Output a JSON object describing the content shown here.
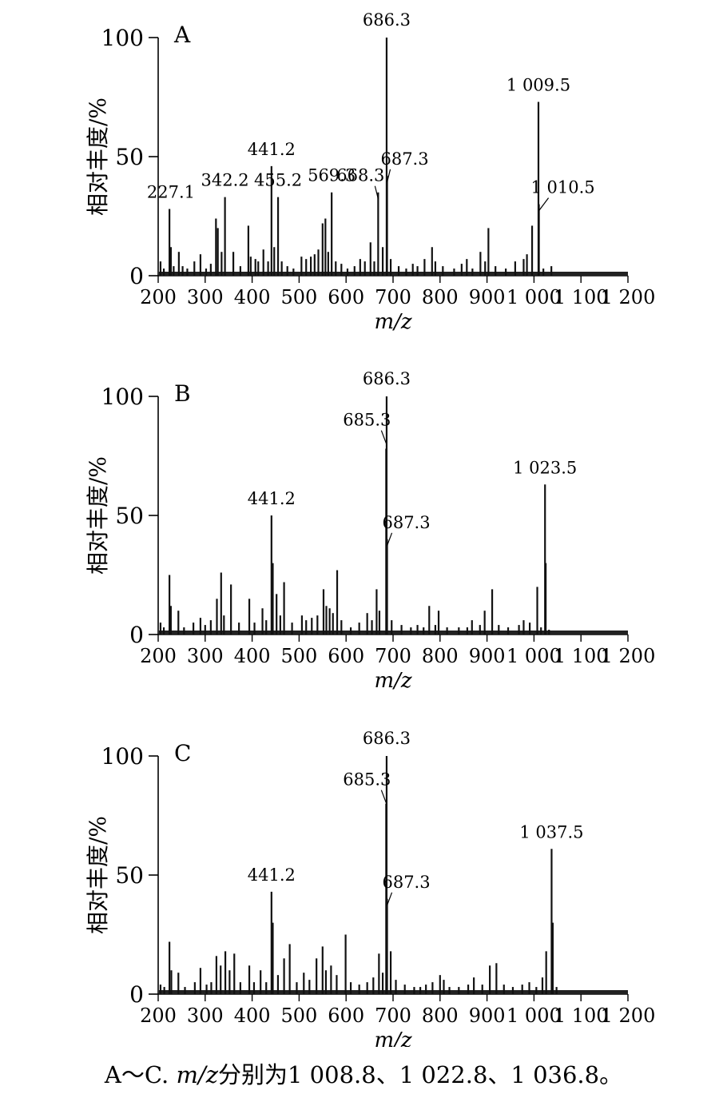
{
  "caption": {
    "prefix": "A～C. ",
    "mz": "m/z",
    "rest": "分别为1 008.8、1 022.8、1 036.8。"
  },
  "chart_data": [
    {
      "type": "bar",
      "panel": "A",
      "xlabel": "m/z",
      "ylabel": "相对丰度/%",
      "xlim": [
        200,
        1200
      ],
      "ylim": [
        0,
        100
      ],
      "xticks": [
        200,
        300,
        400,
        500,
        600,
        700,
        800,
        900,
        1000,
        1100,
        1200
      ],
      "xtick_labels": [
        "200",
        "300",
        "400",
        "500",
        "600",
        "700",
        "800",
        "900",
        "1 000",
        "1 100",
        "1 200"
      ],
      "yticks": [
        0,
        50,
        100
      ],
      "ytick_labels": [
        "0",
        "50",
        "100"
      ],
      "peaks": [
        {
          "x": 205,
          "y": 6
        },
        {
          "x": 212,
          "y": 3
        },
        {
          "x": 224,
          "y": 28
        },
        {
          "x": 227.1,
          "y": 12
        },
        {
          "x": 233,
          "y": 4
        },
        {
          "x": 244,
          "y": 10
        },
        {
          "x": 252,
          "y": 4
        },
        {
          "x": 262,
          "y": 3
        },
        {
          "x": 277,
          "y": 6
        },
        {
          "x": 290,
          "y": 9
        },
        {
          "x": 302,
          "y": 3
        },
        {
          "x": 312,
          "y": 5
        },
        {
          "x": 323,
          "y": 24
        },
        {
          "x": 327,
          "y": 20
        },
        {
          "x": 335,
          "y": 10
        },
        {
          "x": 342.2,
          "y": 33
        },
        {
          "x": 360,
          "y": 10
        },
        {
          "x": 375,
          "y": 4
        },
        {
          "x": 392,
          "y": 21
        },
        {
          "x": 397,
          "y": 8
        },
        {
          "x": 407,
          "y": 7
        },
        {
          "x": 413,
          "y": 6
        },
        {
          "x": 424,
          "y": 11
        },
        {
          "x": 434,
          "y": 6
        },
        {
          "x": 441.2,
          "y": 46
        },
        {
          "x": 447,
          "y": 12
        },
        {
          "x": 455.2,
          "y": 33
        },
        {
          "x": 463,
          "y": 6
        },
        {
          "x": 475,
          "y": 4
        },
        {
          "x": 488,
          "y": 3
        },
        {
          "x": 505,
          "y": 8
        },
        {
          "x": 515,
          "y": 7
        },
        {
          "x": 525,
          "y": 8
        },
        {
          "x": 533,
          "y": 9
        },
        {
          "x": 541,
          "y": 11
        },
        {
          "x": 550,
          "y": 22
        },
        {
          "x": 556,
          "y": 24
        },
        {
          "x": 562,
          "y": 10
        },
        {
          "x": 569.3,
          "y": 35
        },
        {
          "x": 578,
          "y": 6
        },
        {
          "x": 590,
          "y": 5
        },
        {
          "x": 603,
          "y": 3
        },
        {
          "x": 618,
          "y": 4
        },
        {
          "x": 630,
          "y": 7
        },
        {
          "x": 640,
          "y": 6
        },
        {
          "x": 652,
          "y": 14
        },
        {
          "x": 660,
          "y": 6
        },
        {
          "x": 668.3,
          "y": 35
        },
        {
          "x": 678,
          "y": 12
        },
        {
          "x": 686.3,
          "y": 100
        },
        {
          "x": 687.3,
          "y": 42
        },
        {
          "x": 695,
          "y": 7
        },
        {
          "x": 712,
          "y": 4
        },
        {
          "x": 728,
          "y": 3
        },
        {
          "x": 742,
          "y": 5
        },
        {
          "x": 752,
          "y": 4
        },
        {
          "x": 767,
          "y": 7
        },
        {
          "x": 783,
          "y": 12
        },
        {
          "x": 790,
          "y": 6
        },
        {
          "x": 806,
          "y": 4
        },
        {
          "x": 830,
          "y": 3
        },
        {
          "x": 846,
          "y": 5
        },
        {
          "x": 857,
          "y": 7
        },
        {
          "x": 869,
          "y": 3
        },
        {
          "x": 886,
          "y": 10
        },
        {
          "x": 896,
          "y": 6
        },
        {
          "x": 903,
          "y": 20
        },
        {
          "x": 918,
          "y": 4
        },
        {
          "x": 940,
          "y": 3
        },
        {
          "x": 960,
          "y": 6
        },
        {
          "x": 978,
          "y": 7
        },
        {
          "x": 985,
          "y": 9
        },
        {
          "x": 996,
          "y": 21
        },
        {
          "x": 1009.5,
          "y": 73
        },
        {
          "x": 1010.5,
          "y": 30
        },
        {
          "x": 1020,
          "y": 3
        },
        {
          "x": 1037,
          "y": 4
        }
      ],
      "annotations": [
        {
          "text": "A",
          "type": "panel"
        },
        {
          "text": "227.1",
          "x": 227.1,
          "y": 30
        },
        {
          "text": "342.2",
          "x": 342.2,
          "y": 35
        },
        {
          "text": "441.2",
          "x": 441.2,
          "y": 48
        },
        {
          "text": "455.2",
          "x": 455.2,
          "y": 35
        },
        {
          "text": "569.3",
          "x": 569.3,
          "y": 37
        },
        {
          "text": "668.3",
          "x": 668.3,
          "y": 37
        },
        {
          "text": "686.3",
          "x": 686.3,
          "y": 101
        },
        {
          "text": "687.3",
          "x": 687.3,
          "y": 44
        },
        {
          "text": "1 009.5",
          "x": 1009.5,
          "y": 75
        },
        {
          "text": "1 010.5",
          "x": 1010.5,
          "y": 32
        }
      ]
    },
    {
      "type": "bar",
      "panel": "B",
      "xlabel": "m/z",
      "ylabel": "相对丰度/%",
      "xlim": [
        200,
        1200
      ],
      "ylim": [
        0,
        100
      ],
      "xticks": [
        200,
        300,
        400,
        500,
        600,
        700,
        800,
        900,
        1000,
        1100,
        1200
      ],
      "xtick_labels": [
        "200",
        "300",
        "400",
        "500",
        "600",
        "700",
        "800",
        "900",
        "1 000",
        "1 100",
        "1 200"
      ],
      "yticks": [
        0,
        50,
        100
      ],
      "ytick_labels": [
        "0",
        "50",
        "100"
      ],
      "peaks": [
        {
          "x": 205,
          "y": 5
        },
        {
          "x": 212,
          "y": 3
        },
        {
          "x": 224,
          "y": 25
        },
        {
          "x": 227,
          "y": 12
        },
        {
          "x": 243,
          "y": 10
        },
        {
          "x": 255,
          "y": 3
        },
        {
          "x": 275,
          "y": 5
        },
        {
          "x": 290,
          "y": 7
        },
        {
          "x": 300,
          "y": 4
        },
        {
          "x": 312,
          "y": 6
        },
        {
          "x": 325,
          "y": 15
        },
        {
          "x": 334,
          "y": 26
        },
        {
          "x": 340,
          "y": 8
        },
        {
          "x": 355,
          "y": 21
        },
        {
          "x": 372,
          "y": 5
        },
        {
          "x": 394,
          "y": 15
        },
        {
          "x": 405,
          "y": 5
        },
        {
          "x": 422,
          "y": 11
        },
        {
          "x": 430,
          "y": 6
        },
        {
          "x": 441.2,
          "y": 50
        },
        {
          "x": 444,
          "y": 30
        },
        {
          "x": 452,
          "y": 17
        },
        {
          "x": 460,
          "y": 8
        },
        {
          "x": 468,
          "y": 22
        },
        {
          "x": 485,
          "y": 5
        },
        {
          "x": 506,
          "y": 8
        },
        {
          "x": 515,
          "y": 6
        },
        {
          "x": 527,
          "y": 7
        },
        {
          "x": 539,
          "y": 8
        },
        {
          "x": 552,
          "y": 19
        },
        {
          "x": 558,
          "y": 12
        },
        {
          "x": 565,
          "y": 11
        },
        {
          "x": 572,
          "y": 9
        },
        {
          "x": 581,
          "y": 27
        },
        {
          "x": 590,
          "y": 6
        },
        {
          "x": 610,
          "y": 3
        },
        {
          "x": 628,
          "y": 5
        },
        {
          "x": 645,
          "y": 9
        },
        {
          "x": 655,
          "y": 6
        },
        {
          "x": 665,
          "y": 19
        },
        {
          "x": 671,
          "y": 10
        },
        {
          "x": 685.3,
          "y": 78
        },
        {
          "x": 686.3,
          "y": 100
        },
        {
          "x": 687.3,
          "y": 40
        },
        {
          "x": 697,
          "y": 6
        },
        {
          "x": 718,
          "y": 4
        },
        {
          "x": 738,
          "y": 3
        },
        {
          "x": 752,
          "y": 4
        },
        {
          "x": 765,
          "y": 3
        },
        {
          "x": 777,
          "y": 12
        },
        {
          "x": 790,
          "y": 4
        },
        {
          "x": 797,
          "y": 10
        },
        {
          "x": 815,
          "y": 3
        },
        {
          "x": 840,
          "y": 3
        },
        {
          "x": 858,
          "y": 3
        },
        {
          "x": 868,
          "y": 6
        },
        {
          "x": 885,
          "y": 4
        },
        {
          "x": 895,
          "y": 10
        },
        {
          "x": 911,
          "y": 19
        },
        {
          "x": 925,
          "y": 4
        },
        {
          "x": 945,
          "y": 3
        },
        {
          "x": 968,
          "y": 4
        },
        {
          "x": 978,
          "y": 6
        },
        {
          "x": 991,
          "y": 5
        },
        {
          "x": 1007,
          "y": 20
        },
        {
          "x": 1015,
          "y": 3
        },
        {
          "x": 1023.5,
          "y": 63
        },
        {
          "x": 1025,
          "y": 30
        },
        {
          "x": 1032,
          "y": 2
        }
      ],
      "annotations": [
        {
          "text": "B",
          "type": "panel"
        },
        {
          "text": "441.2",
          "x": 441.2,
          "y": 52
        },
        {
          "text": "685.3",
          "x": 685.3,
          "y": 85
        },
        {
          "text": "686.3",
          "x": 686.3,
          "y": 101
        },
        {
          "text": "687.3",
          "x": 687.3,
          "y": 42
        },
        {
          "text": "1 023.5",
          "x": 1023.5,
          "y": 65
        }
      ]
    },
    {
      "type": "bar",
      "panel": "C",
      "xlabel": "m/z",
      "ylabel": "相对丰度/%",
      "xlim": [
        200,
        1200
      ],
      "ylim": [
        0,
        100
      ],
      "xticks": [
        200,
        300,
        400,
        500,
        600,
        700,
        800,
        900,
        1000,
        1100,
        1200
      ],
      "xtick_labels": [
        "200",
        "300",
        "400",
        "500",
        "600",
        "700",
        "800",
        "900",
        "1 000",
        "1 100",
        "1 200"
      ],
      "yticks": [
        0,
        50,
        100
      ],
      "ytick_labels": [
        "0",
        "50",
        "100"
      ],
      "peaks": [
        {
          "x": 205,
          "y": 4
        },
        {
          "x": 213,
          "y": 3
        },
        {
          "x": 224,
          "y": 22
        },
        {
          "x": 228,
          "y": 10
        },
        {
          "x": 243,
          "y": 9
        },
        {
          "x": 257,
          "y": 3
        },
        {
          "x": 278,
          "y": 5
        },
        {
          "x": 290,
          "y": 11
        },
        {
          "x": 303,
          "y": 4
        },
        {
          "x": 313,
          "y": 5
        },
        {
          "x": 324,
          "y": 16
        },
        {
          "x": 333,
          "y": 12
        },
        {
          "x": 343,
          "y": 18
        },
        {
          "x": 352,
          "y": 10
        },
        {
          "x": 362,
          "y": 17
        },
        {
          "x": 375,
          "y": 5
        },
        {
          "x": 394,
          "y": 12
        },
        {
          "x": 404,
          "y": 5
        },
        {
          "x": 418,
          "y": 10
        },
        {
          "x": 430,
          "y": 5
        },
        {
          "x": 441.2,
          "y": 43
        },
        {
          "x": 444,
          "y": 30
        },
        {
          "x": 455,
          "y": 8
        },
        {
          "x": 468,
          "y": 15
        },
        {
          "x": 480,
          "y": 21
        },
        {
          "x": 495,
          "y": 5
        },
        {
          "x": 510,
          "y": 9
        },
        {
          "x": 522,
          "y": 6
        },
        {
          "x": 537,
          "y": 15
        },
        {
          "x": 550,
          "y": 20
        },
        {
          "x": 557,
          "y": 10
        },
        {
          "x": 568,
          "y": 12
        },
        {
          "x": 580,
          "y": 8
        },
        {
          "x": 599,
          "y": 25
        },
        {
          "x": 610,
          "y": 5
        },
        {
          "x": 628,
          "y": 4
        },
        {
          "x": 645,
          "y": 5
        },
        {
          "x": 658,
          "y": 7
        },
        {
          "x": 670,
          "y": 17
        },
        {
          "x": 678,
          "y": 9
        },
        {
          "x": 685.3,
          "y": 80
        },
        {
          "x": 686.3,
          "y": 100
        },
        {
          "x": 687.3,
          "y": 40
        },
        {
          "x": 695,
          "y": 18
        },
        {
          "x": 706,
          "y": 6
        },
        {
          "x": 725,
          "y": 4
        },
        {
          "x": 745,
          "y": 3
        },
        {
          "x": 758,
          "y": 3
        },
        {
          "x": 770,
          "y": 4
        },
        {
          "x": 784,
          "y": 5
        },
        {
          "x": 800,
          "y": 8
        },
        {
          "x": 808,
          "y": 6
        },
        {
          "x": 820,
          "y": 3
        },
        {
          "x": 840,
          "y": 3
        },
        {
          "x": 860,
          "y": 4
        },
        {
          "x": 872,
          "y": 7
        },
        {
          "x": 890,
          "y": 4
        },
        {
          "x": 906,
          "y": 12
        },
        {
          "x": 920,
          "y": 13
        },
        {
          "x": 936,
          "y": 4
        },
        {
          "x": 955,
          "y": 3
        },
        {
          "x": 975,
          "y": 4
        },
        {
          "x": 990,
          "y": 5
        },
        {
          "x": 1005,
          "y": 3
        },
        {
          "x": 1018,
          "y": 7
        },
        {
          "x": 1026,
          "y": 18
        },
        {
          "x": 1037.5,
          "y": 61
        },
        {
          "x": 1040,
          "y": 30
        },
        {
          "x": 1048,
          "y": 3
        }
      ],
      "annotations": [
        {
          "text": "C",
          "type": "panel"
        },
        {
          "text": "441.2",
          "x": 441.2,
          "y": 45
        },
        {
          "text": "685.3",
          "x": 685.3,
          "y": 85
        },
        {
          "text": "686.3",
          "x": 686.3,
          "y": 101
        },
        {
          "text": "687.3",
          "x": 687.3,
          "y": 42
        },
        {
          "text": "1 037.5",
          "x": 1037.5,
          "y": 63
        }
      ]
    }
  ]
}
